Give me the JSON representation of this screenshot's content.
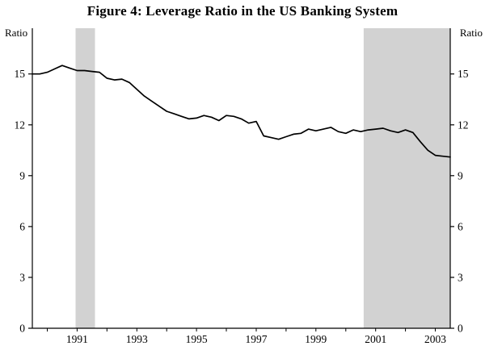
{
  "chart_data": {
    "type": "line",
    "title": "Figure 4: Leverage Ratio in the US Banking System",
    "ylabel_left": "Ratio",
    "ylabel_right": "Ratio",
    "xlim": [
      1989.5,
      2003.5
    ],
    "ylim": [
      0,
      17.7
    ],
    "yticks": [
      0,
      3,
      6,
      9,
      12,
      15
    ],
    "xtick_labels": [
      1991,
      1993,
      1995,
      1997,
      1999,
      2001,
      2003
    ],
    "xticks_minor": [
      1990,
      1991,
      1992,
      1993,
      1994,
      1995,
      1996,
      1997,
      1998,
      1999,
      2000,
      2001,
      2002,
      2003
    ],
    "grid": false,
    "legend": "none",
    "line_color": "#000000",
    "shade_color": "#d2d2d2",
    "shaded_regions": [
      {
        "from": 1990.95,
        "to": 1991.6
      },
      {
        "from": 2000.6,
        "to": 2003.5
      }
    ],
    "series": [
      {
        "name": "Leverage ratio",
        "x": [
          1989.5,
          1989.75,
          1990,
          1990.25,
          1990.5,
          1990.75,
          1991,
          1991.25,
          1991.5,
          1991.75,
          1992,
          1992.25,
          1992.5,
          1992.75,
          1993,
          1993.25,
          1993.5,
          1993.75,
          1994,
          1994.25,
          1994.5,
          1994.75,
          1995,
          1995.25,
          1995.5,
          1995.75,
          1996,
          1996.25,
          1996.5,
          1996.75,
          1997,
          1997.25,
          1997.5,
          1997.75,
          1998,
          1998.25,
          1998.5,
          1998.75,
          1999,
          1999.25,
          1999.5,
          1999.75,
          2000,
          2000.25,
          2000.5,
          2000.75,
          2001,
          2001.25,
          2001.5,
          2001.75,
          2002,
          2002.25,
          2002.5,
          2002.75,
          2003,
          2003.25,
          2003.5
        ],
        "y": [
          15.0,
          15.0,
          15.1,
          15.3,
          15.5,
          15.35,
          15.2,
          15.2,
          15.15,
          15.1,
          14.75,
          14.65,
          14.7,
          14.5,
          14.1,
          13.7,
          13.4,
          13.1,
          12.8,
          12.65,
          12.5,
          12.35,
          12.4,
          12.55,
          12.45,
          12.25,
          12.55,
          12.5,
          12.35,
          12.1,
          12.2,
          11.35,
          11.25,
          11.15,
          11.3,
          11.45,
          11.5,
          11.75,
          11.65,
          11.75,
          11.85,
          11.6,
          11.5,
          11.7,
          11.6,
          11.7,
          11.75,
          11.8,
          11.65,
          11.55,
          11.7,
          11.55,
          11.0,
          10.5,
          10.2,
          10.15,
          10.1
        ]
      }
    ]
  }
}
